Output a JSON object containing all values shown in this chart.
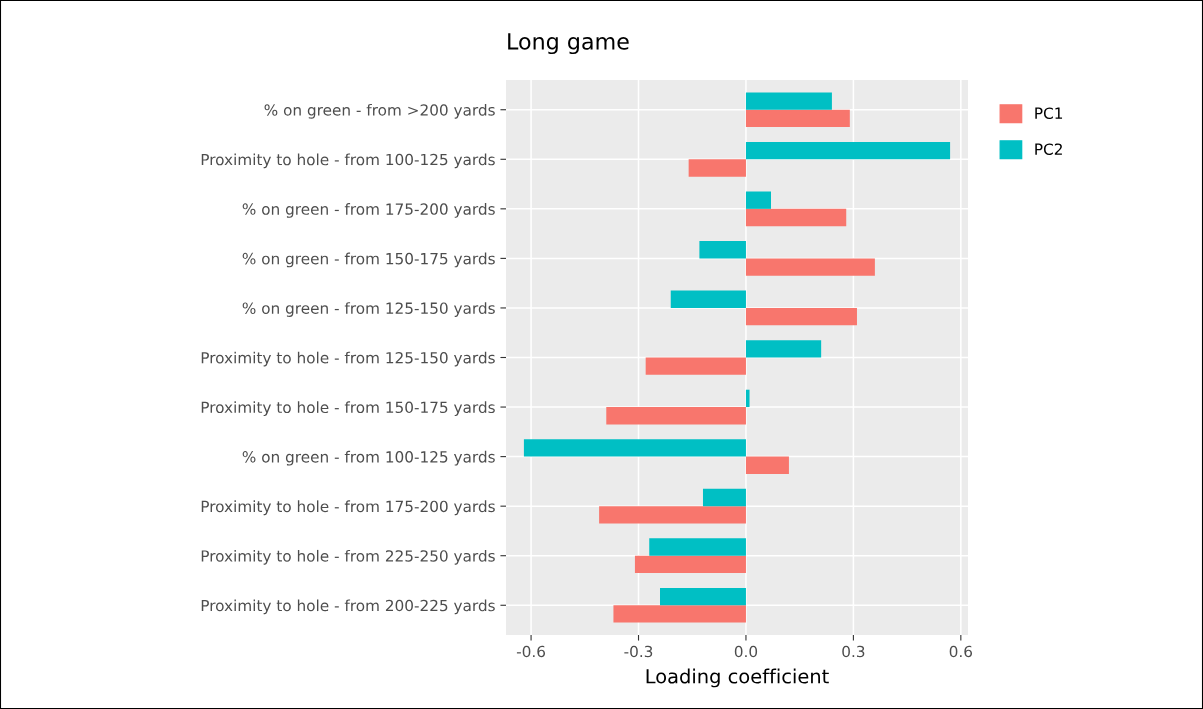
{
  "chart_data": {
    "type": "bar",
    "orientation": "horizontal",
    "title": "Long game",
    "xlabel": "Loading coefficient",
    "categories": [
      "% on green - from >200 yards",
      "Proximity to hole - from 100-125 yards",
      "% on green - from 175-200 yards",
      "% on green - from 150-175 yards",
      "% on green - from 125-150 yards",
      "Proximity to hole - from 125-150 yards",
      "Proximity to hole - from 150-175 yards",
      "% on green - from 100-125 yards",
      "Proximity to hole - from 175-200 yards",
      "Proximity to hole - from 225-250 yards",
      "Proximity to hole - from 200-225 yards"
    ],
    "series": [
      {
        "name": "PC1",
        "color": "#f8766d",
        "values": [
          0.29,
          -0.16,
          0.28,
          0.36,
          0.31,
          -0.28,
          -0.39,
          0.12,
          -0.41,
          -0.31,
          -0.37
        ]
      },
      {
        "name": "PC2",
        "color": "#00bfc4",
        "values": [
          0.24,
          0.57,
          0.07,
          -0.13,
          -0.21,
          0.21,
          0.01,
          -0.62,
          -0.12,
          -0.27,
          -0.24
        ]
      }
    ],
    "xlim": [
      -0.67,
      0.62
    ],
    "xticks": [
      {
        "value": -0.6,
        "label": "-0.6"
      },
      {
        "value": -0.3,
        "label": "-0.3"
      },
      {
        "value": 0,
        "label": "0.0"
      },
      {
        "value": 0.3,
        "label": "0.3"
      },
      {
        "value": 0.6,
        "label": "0.6"
      }
    ],
    "grid": true,
    "legend": "right"
  }
}
